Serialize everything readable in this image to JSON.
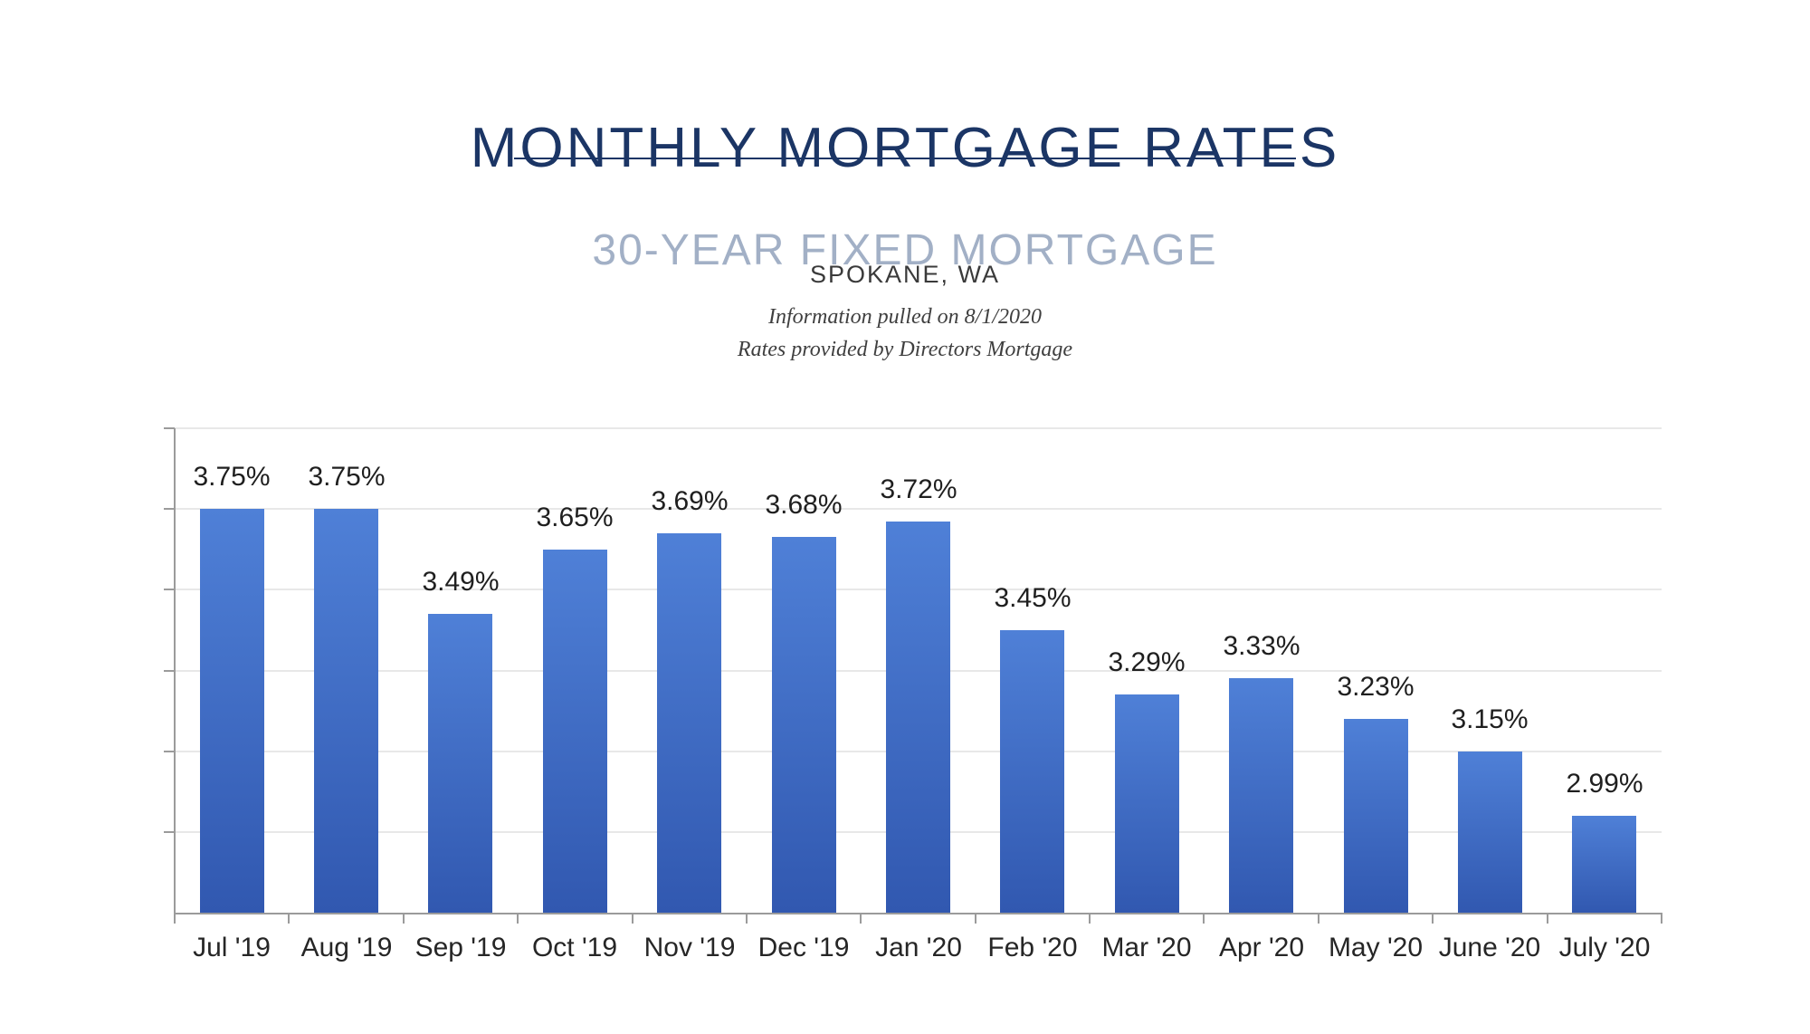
{
  "header": {
    "title": "MONTHLY MORTGAGE RATES",
    "subtitle": "30-YEAR FIXED MORTGAGE",
    "location": "SPOKANE, WA",
    "info_note": "Information pulled on 8/1/2020",
    "source_note": "Rates provided by Directors Mortgage"
  },
  "colors": {
    "title_navy": "#1b3565",
    "subtitle_blue_gray": "#a2b0c6",
    "location_text": "#3a3a3a",
    "note_text": "#3f3f3f",
    "bar_gradient_top": "#4f80d7",
    "bar_gradient_bottom": "#3158b0",
    "axis_gray": "#9b9b9b",
    "gridline_gray": "#e8e8e8",
    "value_label_dark": "#1f1f1f",
    "month_label_dark": "#262626"
  },
  "chart_data": {
    "type": "bar",
    "title": "",
    "xlabel": "",
    "ylabel": "",
    "categories": [
      "Jul '19",
      "Aug '19",
      "Sep '19",
      "Oct '19",
      "Nov '19",
      "Dec '19",
      "Jan '20",
      "Feb '20",
      "Mar '20",
      "Apr '20",
      "May '20",
      "June '20",
      "July '20"
    ],
    "values": [
      3.75,
      3.75,
      3.49,
      3.65,
      3.69,
      3.68,
      3.72,
      3.45,
      3.29,
      3.33,
      3.23,
      3.15,
      2.99
    ],
    "value_labels": [
      "3.75%",
      "3.75%",
      "3.49%",
      "3.65%",
      "3.69%",
      "3.68%",
      "3.72%",
      "3.45%",
      "3.29%",
      "3.33%",
      "3.23%",
      "3.15%",
      "2.99%"
    ],
    "unit": "%",
    "ylim": [
      2.75,
      3.95
    ],
    "grid_interval": 0.2,
    "grid": true,
    "legend": false,
    "data_labels": true
  }
}
